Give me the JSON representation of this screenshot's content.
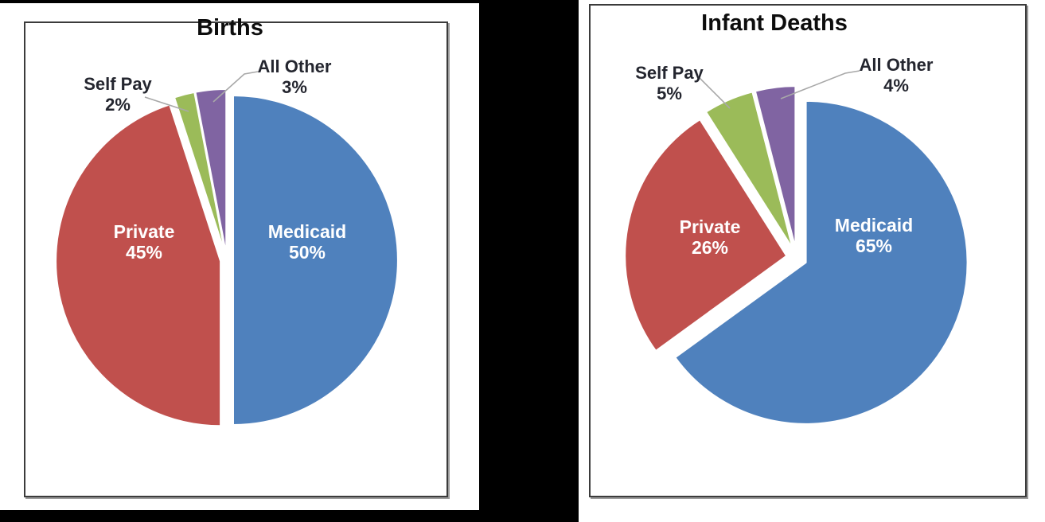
{
  "page": {
    "background_color": "#000000",
    "panel_color": "#ffffff",
    "frame_border_color": "#3b3b3b"
  },
  "chart_data": [
    {
      "type": "pie",
      "title": "Births",
      "categories": [
        "Medicaid",
        "Private",
        "Self Pay",
        "All Other"
      ],
      "values": [
        50,
        45,
        2,
        3
      ],
      "value_unit": "percent",
      "slice_colors": [
        "#4F81BD",
        "#C0504D",
        "#9BBB59",
        "#8064A2"
      ],
      "start_angle_deg": 0,
      "direction": "clockwise",
      "exploded": true,
      "legend": "none",
      "data_labels": [
        {
          "name": "Medicaid",
          "pct": "50%",
          "placement": "inside"
        },
        {
          "name": "Private",
          "pct": "45%",
          "placement": "inside"
        },
        {
          "name": "Self Pay",
          "pct": "2%",
          "placement": "outside",
          "leader_line": true
        },
        {
          "name": "All Other",
          "pct": "3%",
          "placement": "outside",
          "leader_line": true
        }
      ],
      "inside_label_color": "#ffffff",
      "outside_label_color": "#24262f",
      "leader_line_color": "#a8a8a8"
    },
    {
      "type": "pie",
      "title": "Infant Deaths",
      "categories": [
        "Medicaid",
        "Private",
        "Self Pay",
        "All Other"
      ],
      "values": [
        65,
        26,
        5,
        4
      ],
      "value_unit": "percent",
      "slice_colors": [
        "#4F81BD",
        "#C0504D",
        "#9BBB59",
        "#8064A2"
      ],
      "start_angle_deg": 0,
      "direction": "clockwise",
      "exploded": true,
      "legend": "none",
      "data_labels": [
        {
          "name": "Medicaid",
          "pct": "65%",
          "placement": "inside"
        },
        {
          "name": "Private",
          "pct": "26%",
          "placement": "inside"
        },
        {
          "name": "Self Pay",
          "pct": "5%",
          "placement": "outside",
          "leader_line": true
        },
        {
          "name": "All Other",
          "pct": "4%",
          "placement": "outside",
          "leader_line": true
        }
      ],
      "inside_label_color": "#ffffff",
      "outside_label_color": "#24262f",
      "leader_line_color": "#a8a8a8"
    }
  ]
}
